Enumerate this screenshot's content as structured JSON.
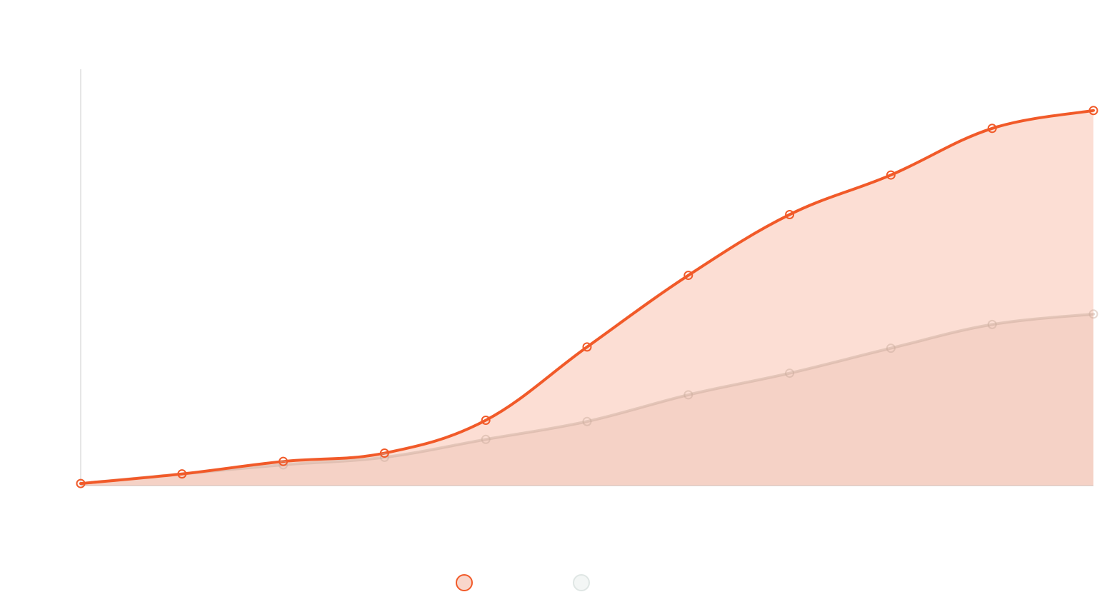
{
  "chart_data": {
    "type": "area",
    "title": "",
    "xlabel": "",
    "ylabel": "",
    "x": [
      0,
      1,
      2,
      3,
      4,
      5,
      6,
      7,
      8,
      9,
      10
    ],
    "ylim": [
      0,
      100
    ],
    "grid": false,
    "legend_position": "bottom-center",
    "series": [
      {
        "name": "",
        "values": [
          0.5,
          2.8,
          5.8,
          7.8,
          15.7,
          33.3,
          50.5,
          65.1,
          74.6,
          85.8,
          90.1
        ],
        "color": "#f15a29",
        "fill": "#f15a29",
        "fill_opacity": 0.2,
        "line_opacity": 1.0
      },
      {
        "name": "",
        "values": [
          0.5,
          2.8,
          5.0,
          6.8,
          11.1,
          15.4,
          21.8,
          27.0,
          33.0,
          38.7,
          41.2
        ],
        "color": "#c8a99a",
        "fill": "#d9bfb3",
        "fill_opacity": 0.22,
        "line_opacity": 0.45
      }
    ]
  },
  "legend": {
    "items": [
      {
        "name": "",
        "swatch_color": "#f15a29",
        "swatch_fill": "#f9d6cb"
      },
      {
        "name": "",
        "swatch_color": "#dfe6e4",
        "swatch_fill": "#f3f6f5"
      }
    ]
  }
}
